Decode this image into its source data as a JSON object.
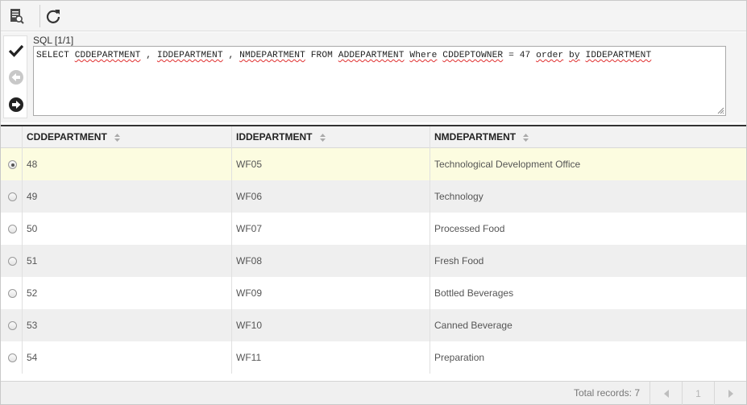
{
  "toolbar": {
    "buttons": [
      {
        "name": "report-preview",
        "icon": "document-search-icon"
      },
      {
        "name": "refresh",
        "icon": "refresh-icon"
      }
    ]
  },
  "sql": {
    "label": "SQL [1/1]",
    "tokens": [
      {
        "t": "SELECT ",
        "spell": false
      },
      {
        "t": "CDDEPARTMENT",
        "spell": true
      },
      {
        "t": " , ",
        "spell": false
      },
      {
        "t": "IDDEPARTMENT",
        "spell": true
      },
      {
        "t": " , ",
        "spell": false
      },
      {
        "t": "NMDEPARTMENT",
        "spell": true
      },
      {
        "t": " FROM ",
        "spell": false
      },
      {
        "t": "ADDEPARTMENT",
        "spell": true
      },
      {
        "t": " ",
        "spell": false
      },
      {
        "t": "Where",
        "spell": true
      },
      {
        "t": " ",
        "spell": false
      },
      {
        "t": "CDDEPTOWNER",
        "spell": true
      },
      {
        "t": " = 47 ",
        "spell": false
      },
      {
        "t": "order",
        "spell": true
      },
      {
        "t": " ",
        "spell": false
      },
      {
        "t": "by",
        "spell": true
      },
      {
        "t": " ",
        "spell": false
      },
      {
        "t": "IDDEPARTMENT",
        "spell": true
      }
    ],
    "actions": [
      {
        "name": "execute",
        "icon": "checkmark-icon",
        "enabled": true
      },
      {
        "name": "previous",
        "icon": "arrow-left-circle-icon",
        "enabled": false
      },
      {
        "name": "next",
        "icon": "arrow-right-circle-icon",
        "enabled": true
      }
    ]
  },
  "grid": {
    "columns": [
      "CDDEPARTMENT",
      "IDDEPARTMENT",
      "NMDEPARTMENT"
    ],
    "selected_row": 0,
    "rows": [
      [
        "48",
        "WF05",
        "Technological Development Office"
      ],
      [
        "49",
        "WF06",
        "Technology"
      ],
      [
        "50",
        "WF07",
        "Processed Food"
      ],
      [
        "51",
        "WF08",
        "Fresh Food"
      ],
      [
        "52",
        "WF09",
        "Bottled Beverages"
      ],
      [
        "53",
        "WF10",
        "Canned Beverage"
      ],
      [
        "54",
        "WF11",
        "Preparation"
      ]
    ]
  },
  "footer": {
    "total_label": "Total records: 7",
    "page": "1"
  },
  "colors": {
    "selected_row": "#fcfce0",
    "alt_row": "#efefef",
    "header_bg": "#f2f2f2"
  }
}
